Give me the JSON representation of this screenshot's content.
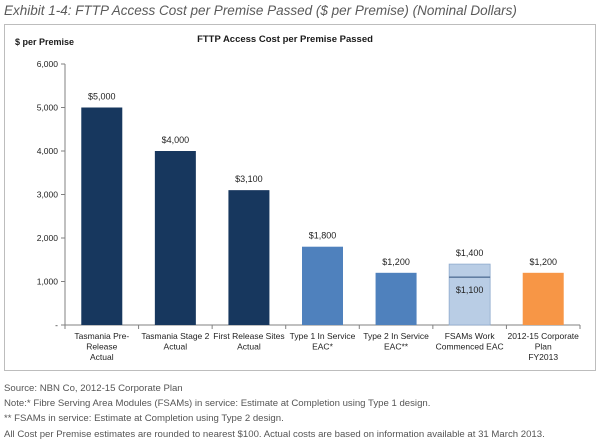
{
  "exhibit_title": "Exhibit 1-4: FTTP Access Cost per Premise Passed ($ per Premise) (Nominal Dollars)",
  "notes": [
    "Source: NBN Co, 2012-15 Corporate Plan",
    "Note:* Fibre Serving Area Modules (FSAMs) in service: Estimate at Completion using Type 1 design.",
    "** FSAMs in service: Estimate at Completion using Type 2 design.",
    "All Cost per Premise estimates are rounded to nearest $100. Actual costs are based on information available at 31 March 2013."
  ],
  "colors": {
    "navy": "#17375e",
    "blue": "#4f81bd",
    "light_blue": "#b9cde5",
    "orange": "#f79646",
    "axis": "#808080"
  },
  "chart_data": {
    "type": "bar",
    "title": "FTTP Access Cost per Premise Passed",
    "ylabel": "$ per Premise",
    "xlabel": "",
    "ylim": [
      0,
      6000
    ],
    "yticks": [
      {
        "value": 0,
        "label": "-"
      },
      {
        "value": 1000,
        "label": "1,000"
      },
      {
        "value": 2000,
        "label": "2,000"
      },
      {
        "value": 3000,
        "label": "3,000"
      },
      {
        "value": 4000,
        "label": "4,000"
      },
      {
        "value": 5000,
        "label": "5,000"
      },
      {
        "value": 6000,
        "label": "6,000"
      }
    ],
    "grid": false,
    "legend": "none",
    "categories": [
      [
        "Tasmania Pre-",
        "Release",
        "Actual"
      ],
      [
        "Tasmania Stage 2",
        "Actual"
      ],
      [
        "First Release Sites",
        "Actual"
      ],
      [
        "Type 1 In Service",
        "EAC*"
      ],
      [
        "Type 2 In Service",
        "EAC**"
      ],
      [
        "FSAMs Work",
        "Commenced EAC"
      ],
      [
        "2012-15 Corporate",
        "Plan",
        "FY2013"
      ]
    ],
    "bars": [
      {
        "value": 5000,
        "label": "$5,000",
        "color": "#17375e"
      },
      {
        "value": 4000,
        "label": "$4,000",
        "color": "#17375e"
      },
      {
        "value": 3100,
        "label": "$3,100",
        "color": "#17375e"
      },
      {
        "value": 1800,
        "label": "$1,800",
        "color": "#4f81bd"
      },
      {
        "value": 1200,
        "label": "$1,200",
        "color": "#4f81bd"
      },
      {
        "value": 1400,
        "label": "$1,400",
        "color": "#b9cde5",
        "inner_value": 1100,
        "inner_label": "$1,100"
      },
      {
        "value": 1200,
        "label": "$1,200",
        "color": "#f79646"
      }
    ]
  }
}
